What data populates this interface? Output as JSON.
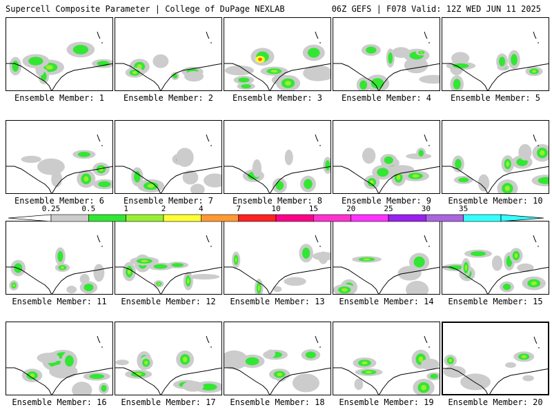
{
  "header": {
    "left": "Supercell Composite Parameter | College of DuPage NEXLAB",
    "right": "06Z GEFS | F078 Valid: 12Z WED JUN 11 2025"
  },
  "members": [
    {
      "label": "Ensemble Member: 1"
    },
    {
      "label": "Ensemble Member: 2"
    },
    {
      "label": "Ensemble Member: 3"
    },
    {
      "label": "Ensemble Member: 4"
    },
    {
      "label": "Ensemble Member: 5"
    },
    {
      "label": "Ensemble Member: 6"
    },
    {
      "label": "Ensemble Member: 7"
    },
    {
      "label": "Ensemble Member: 8"
    },
    {
      "label": "Ensemble Member: 9"
    },
    {
      "label": "Ensemble Member: 10"
    },
    {
      "label": "Ensemble Member: 11"
    },
    {
      "label": "Ensemble Member: 12"
    },
    {
      "label": "Ensemble Member: 13"
    },
    {
      "label": "Ensemble Member: 14"
    },
    {
      "label": "Ensemble Member: 15"
    },
    {
      "label": "Ensemble Member: 16"
    },
    {
      "label": "Ensemble Member: 17"
    },
    {
      "label": "Ensemble Member: 18"
    },
    {
      "label": "Ensemble Member: 19"
    },
    {
      "label": "Ensemble Member: 20"
    }
  ],
  "colorbar": {
    "ticks": [
      "0.25",
      "0.5",
      "1",
      "2",
      "4",
      "7",
      "10",
      "15",
      "20",
      "25",
      "30",
      "35"
    ],
    "colors": [
      "#cccccc",
      "#33e633",
      "#99ee33",
      "#ffff33",
      "#ff9933",
      "#ff2222",
      "#ff0088",
      "#ff33cc",
      "#ff33ff",
      "#9922ee",
      "#aa66dd",
      "#33ffff"
    ]
  },
  "map_colors": {
    "low": "#cccccc",
    "mid": "#33e633",
    "high": "#99ee33",
    "higher": "#ffff33",
    "peak": "#ff6600",
    "coast": "#000000"
  }
}
